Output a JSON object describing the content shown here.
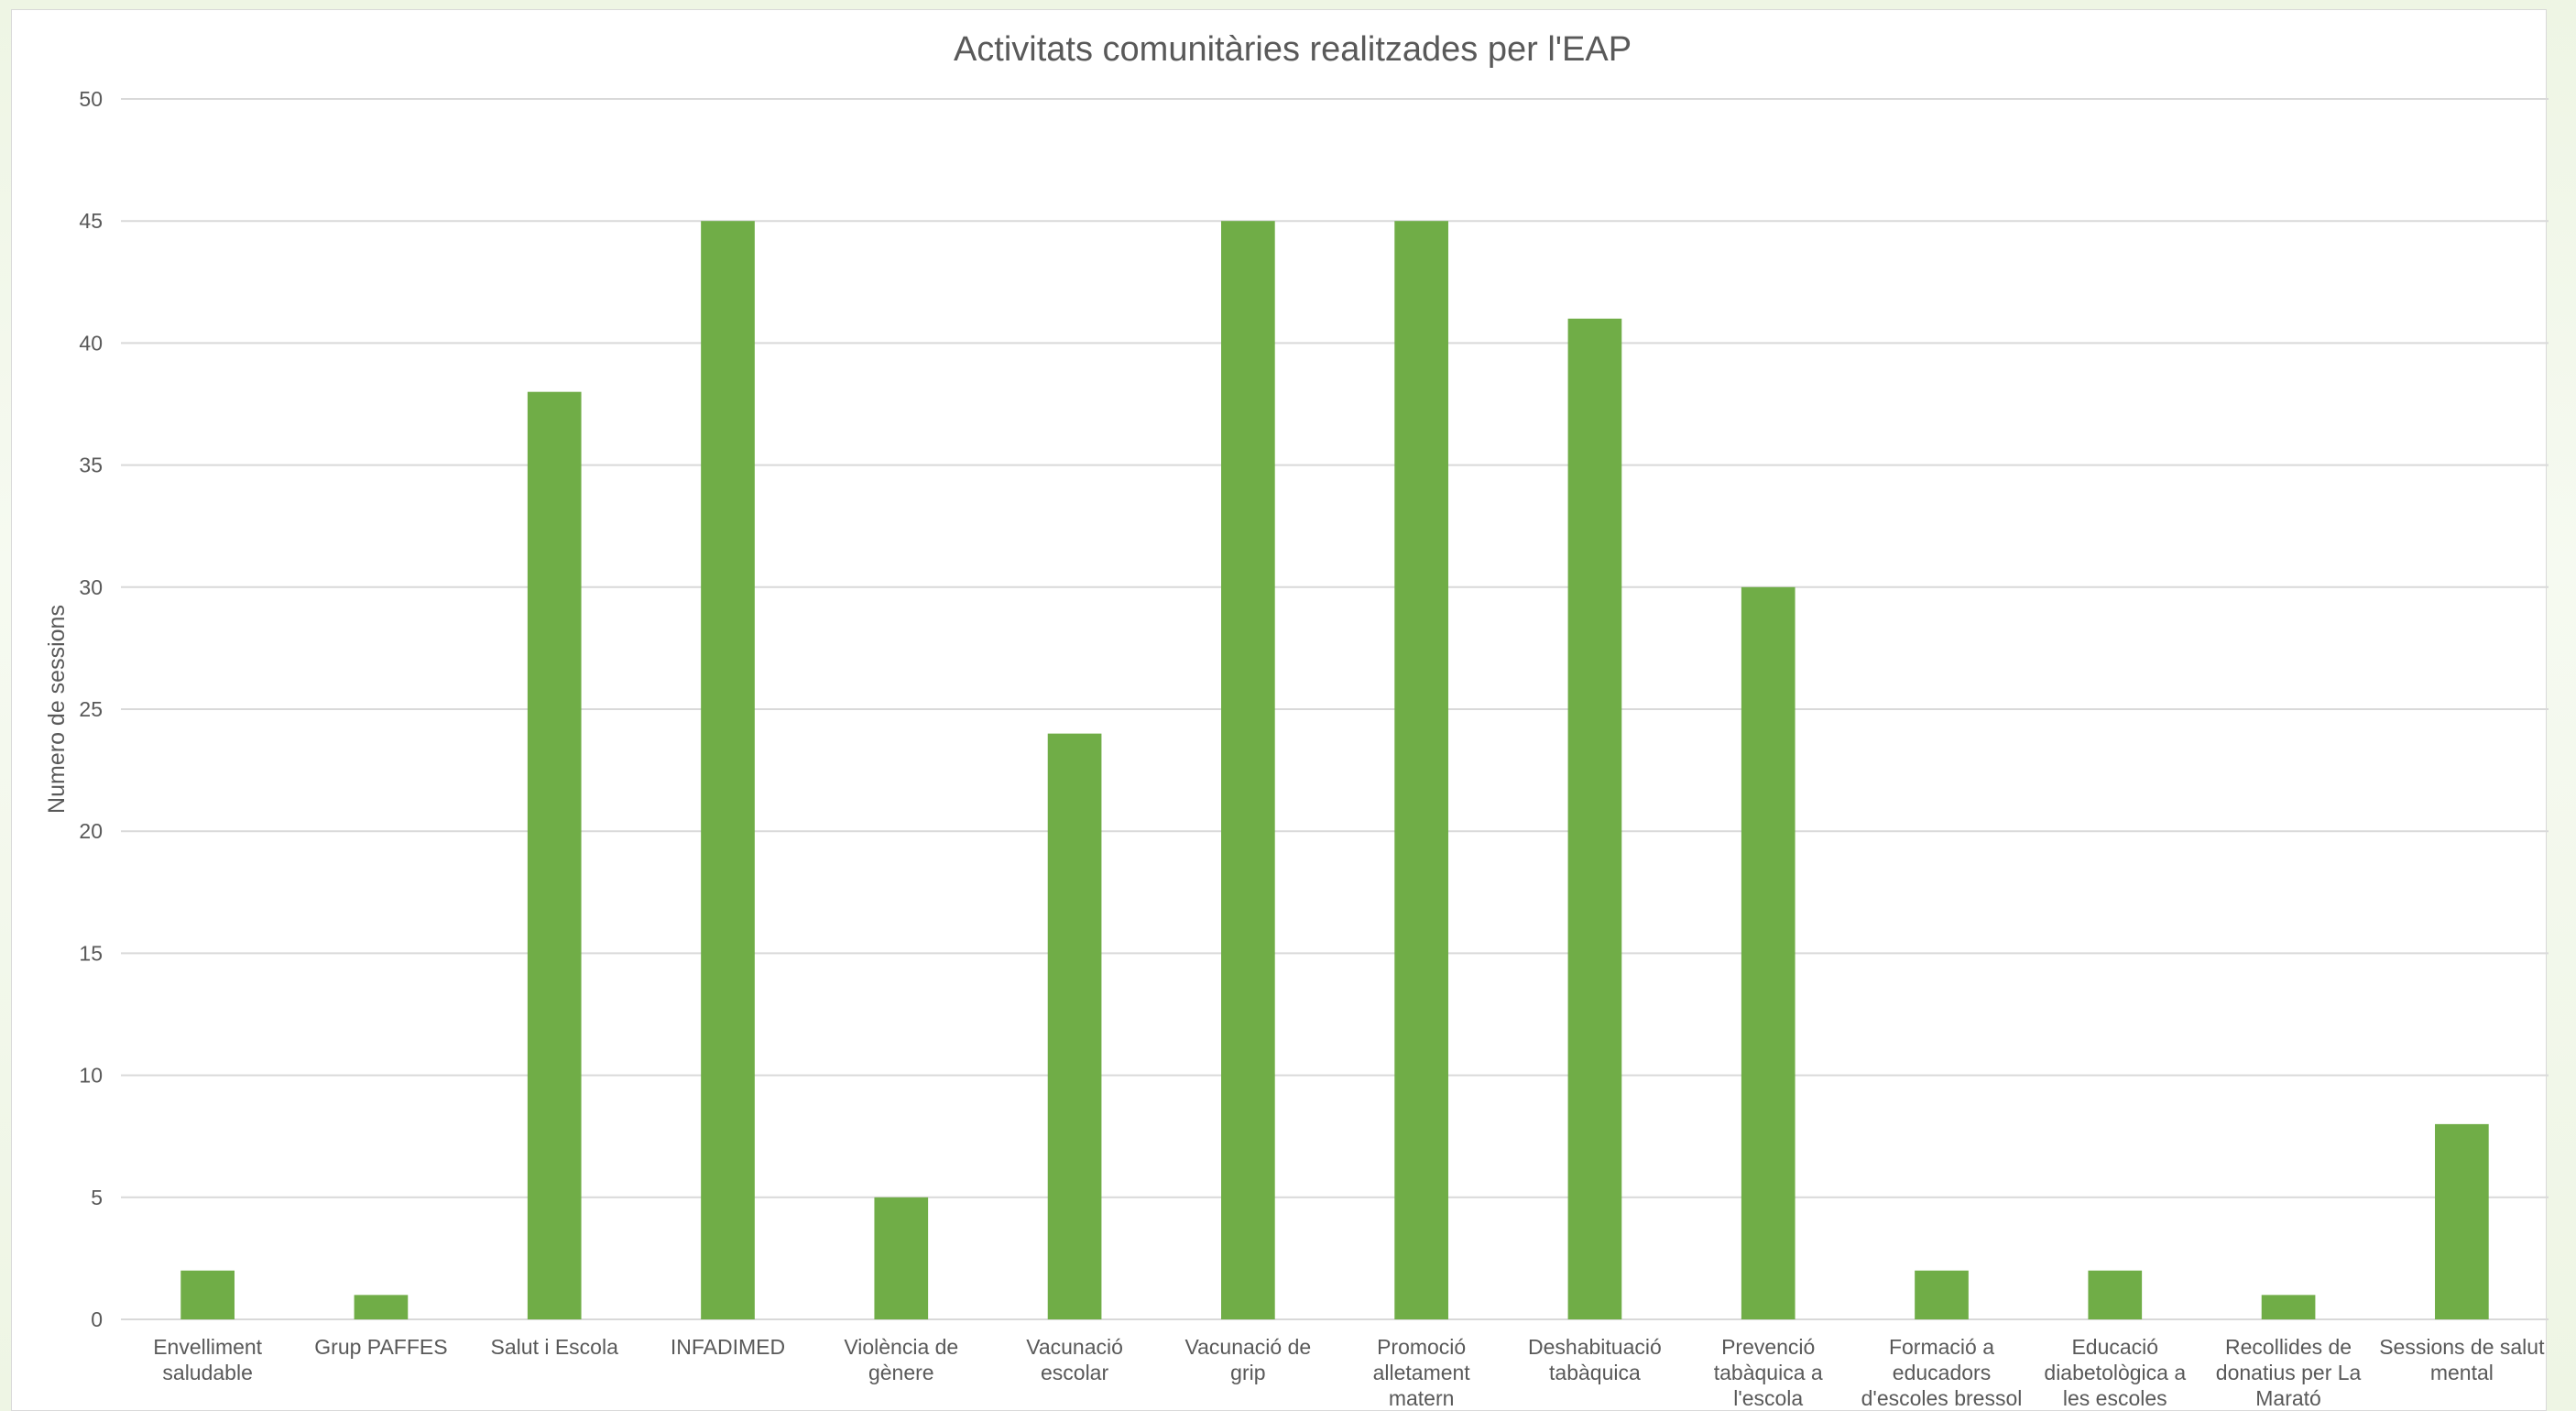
{
  "chart_data": {
    "type": "bar",
    "title": "Activitats comunitàries realitzades per l'EAP",
    "xlabel": "",
    "ylabel": "Numero de sessions",
    "ylim": [
      0,
      50
    ],
    "ytick_step": 5,
    "grid": true,
    "legend": "none",
    "bar_color": "#70ad47",
    "categories": [
      [
        "Envelliment",
        "saludable"
      ],
      [
        "Grup PAFFES"
      ],
      [
        "Salut i Escola"
      ],
      [
        "INFADIMED"
      ],
      [
        "Violència de",
        "gènere"
      ],
      [
        "Vacunació",
        "escolar"
      ],
      [
        "Vacunació de",
        "grip"
      ],
      [
        "Promoció",
        "alletament",
        "matern"
      ],
      [
        "Deshabituació",
        "tabàquica"
      ],
      [
        "Prevenció",
        "tabàquica a",
        "l'escola"
      ],
      [
        "Formació a",
        "educadors",
        "d'escoles bressol"
      ],
      [
        "Educació",
        "diabetològica a",
        "les escoles"
      ],
      [
        "Recollides de",
        "donatius per La",
        "Marató"
      ],
      [
        "Sessions de salut",
        "mental"
      ]
    ],
    "values": [
      2,
      1,
      38,
      45,
      5,
      24,
      45,
      45,
      41,
      30,
      2,
      2,
      1,
      8
    ]
  }
}
